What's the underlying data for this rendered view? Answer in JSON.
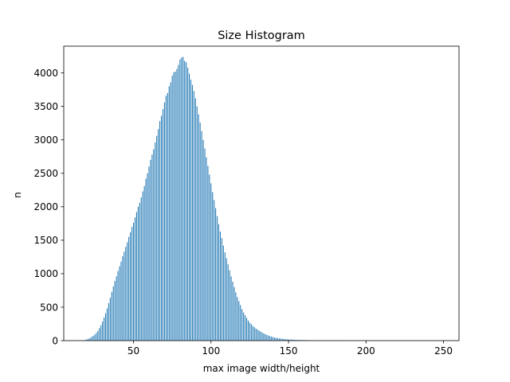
{
  "chart_data": {
    "type": "bar",
    "title": "Size Histogram",
    "xlabel": "max image width/height",
    "ylabel": "n",
    "xlim": [
      5,
      260
    ],
    "ylim": [
      0,
      4400
    ],
    "xticks": [
      50,
      100,
      150,
      200,
      250
    ],
    "yticks": [
      0,
      500,
      1000,
      1500,
      2000,
      2500,
      3000,
      3500,
      4000
    ],
    "grid": false,
    "legend": "none",
    "bar_color": "#1f77b4",
    "x_start": 16,
    "series": [
      {
        "values": [
          1,
          2,
          5,
          10,
          18,
          28,
          40,
          55,
          70,
          90,
          115,
          145,
          185,
          230,
          285,
          345,
          410,
          480,
          560,
          640,
          730,
          810,
          890,
          960,
          1040,
          1110,
          1180,
          1260,
          1330,
          1400,
          1470,
          1550,
          1620,
          1700,
          1760,
          1840,
          1920,
          2000,
          2060,
          2140,
          2230,
          2310,
          2420,
          2500,
          2600,
          2700,
          2780,
          2860,
          2960,
          3060,
          3160,
          3280,
          3360,
          3460,
          3560,
          3660,
          3700,
          3800,
          3860,
          3960,
          4010,
          4020,
          4060,
          4120,
          4200,
          4230,
          4240,
          4180,
          4160,
          4080,
          3990,
          3900,
          3820,
          3730,
          3620,
          3500,
          3380,
          3260,
          3130,
          3000,
          2870,
          2740,
          2610,
          2480,
          2350,
          2220,
          2100,
          1980,
          1860,
          1740,
          1630,
          1530,
          1420,
          1320,
          1230,
          1140,
          1050,
          960,
          880,
          800,
          720,
          650,
          590,
          530,
          470,
          420,
          380,
          340,
          300,
          270,
          245,
          220,
          200,
          180,
          165,
          150,
          135,
          120,
          108,
          96,
          85,
          76,
          68,
          60,
          53,
          46,
          41,
          37,
          33,
          30,
          27,
          24,
          22,
          20,
          18,
          16,
          15,
          14,
          12,
          11,
          10,
          9,
          9,
          8,
          8,
          7,
          7,
          6,
          6,
          6,
          5,
          5,
          5,
          4,
          4,
          4,
          4,
          3,
          3,
          3,
          3,
          3,
          2,
          2,
          2,
          2,
          2,
          2,
          2,
          2,
          1,
          1,
          1,
          1,
          1,
          1,
          1,
          1,
          1,
          1,
          1,
          1,
          1,
          1,
          1,
          1,
          1,
          1,
          1,
          1,
          1,
          1,
          1,
          1,
          1,
          1,
          1,
          1,
          1,
          1,
          1,
          1,
          1,
          1,
          1,
          1,
          1,
          1,
          1,
          1,
          1,
          1,
          1,
          1,
          1,
          1,
          1,
          1,
          1,
          1,
          1,
          1,
          1,
          1,
          1,
          1,
          1,
          1,
          1,
          1,
          1,
          1,
          1
        ]
      }
    ]
  }
}
